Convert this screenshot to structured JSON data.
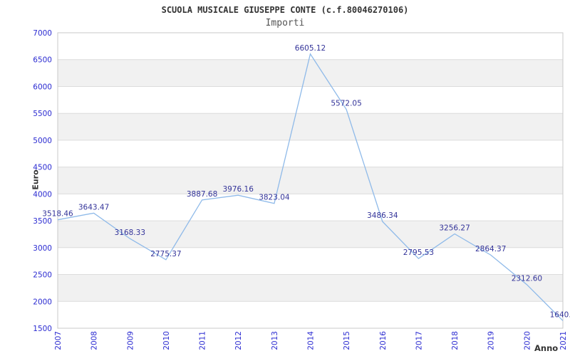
{
  "chart_data": {
    "type": "line",
    "title": "SCUOLA MUSICALE GIUSEPPE CONTE (c.f.80046270106)",
    "subtitle": "Importi",
    "xlabel": "Anno",
    "ylabel": "Euro",
    "categories": [
      "2007",
      "2008",
      "2009",
      "2010",
      "2011",
      "2012",
      "2013",
      "2014",
      "2015",
      "2016",
      "2017",
      "2018",
      "2019",
      "2020",
      "2021"
    ],
    "values": [
      3518.46,
      3643.47,
      3168.33,
      2775.37,
      3887.68,
      3976.16,
      3823.04,
      6605.12,
      5572.05,
      3486.34,
      2795.53,
      3256.27,
      2864.37,
      2312.6,
      1640.8
    ],
    "labels": [
      "3518.46",
      "3643.47",
      "3168.33",
      "2775.37",
      "3887.68",
      "3976.16",
      "3823.04",
      "6605.12",
      "5572.05",
      "3486.34",
      "2795.53",
      "3256.27",
      "2864.37",
      "2312.60",
      "1640.8"
    ],
    "ylim": [
      1500,
      7000
    ],
    "ytick_step": 500,
    "grid": true,
    "legend": "none",
    "colors": {
      "line": "#8fbae9",
      "tick_label": "#2b2bd1",
      "data_label": "#333399",
      "band": "#f1f1f1",
      "plot_bg": "#ffffff",
      "gridline": "#dcdcdc",
      "frame": "#c8c8c8",
      "title": "#333333",
      "subtitle": "#555555",
      "axis_title": "#333333"
    }
  }
}
